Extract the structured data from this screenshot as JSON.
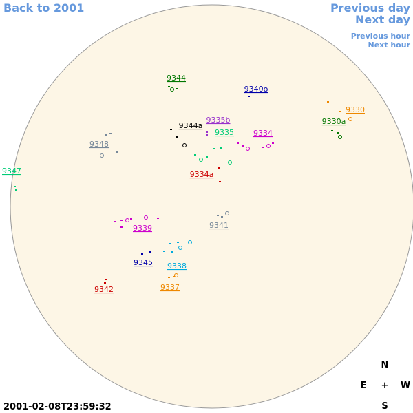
{
  "nav": {
    "back": "Back to 2001",
    "previous_day": "Previous day",
    "next_day": "Next day",
    "previous_hour": "Previous hour",
    "next_hour": "Next hour"
  },
  "timestamp": "2001-02-08T23:59:32",
  "compass": {
    "north": "N",
    "east": "E",
    "center": "+",
    "west": "W",
    "south": "S"
  },
  "regions": [
    {
      "label": "9344",
      "color": "#007700"
    },
    {
      "label": "9340o",
      "color": "#0000aa"
    },
    {
      "label": "9344a",
      "color": "#000000"
    },
    {
      "label": "9335b",
      "color": "#9933cc"
    },
    {
      "label": "9335",
      "color": "#00cc77"
    },
    {
      "label": "9334",
      "color": "#cc00cc"
    },
    {
      "label": "9330",
      "color": "#ee8800"
    },
    {
      "label": "9330a",
      "color": "#007700"
    },
    {
      "label": "9348",
      "color": "#778899"
    },
    {
      "label": "9347",
      "color": "#00cc77"
    },
    {
      "label": "9334a",
      "color": "#cc0000"
    },
    {
      "label": "9341",
      "color": "#778899"
    },
    {
      "label": "9339",
      "color": "#cc00cc"
    },
    {
      "label": "9345",
      "color": "#0000aa"
    },
    {
      "label": "9338",
      "color": "#00aadd"
    },
    {
      "label": "9337",
      "color": "#ee8800"
    },
    {
      "label": "9342",
      "color": "#cc0000"
    }
  ]
}
